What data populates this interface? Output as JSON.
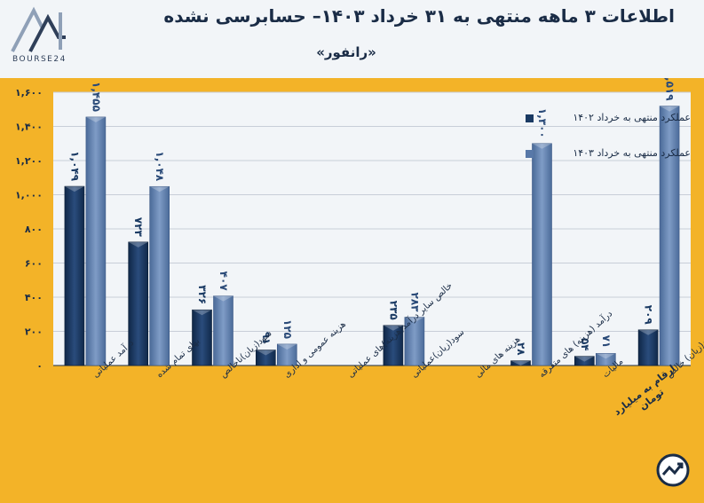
{
  "header": {
    "title": "اطلاعات ۳ ماهه منتهی به ۳۱ خرداد ۱۴۰۳– حسابرسی نشده",
    "subtitle": "«رانفور»",
    "logo_text": "BOURSE24"
  },
  "unit_note": "ارقام به میلیارد تومان",
  "colors": {
    "background": "#f3b328",
    "plot_area": "#f2f5f8",
    "series_prev": "#1a3a63",
    "series_curr": "#5878a8",
    "text": "#1a2c46"
  },
  "chart_data": {
    "type": "bar",
    "ylim": [
      0,
      1600
    ],
    "yticks": [
      "۰",
      "۲۰۰",
      "۴۰۰",
      "۶۰۰",
      "۸۰۰",
      "۱,۰۰۰",
      "۱,۲۰۰",
      "۱,۴۰۰",
      "۱,۶۰۰"
    ],
    "ytick_values": [
      0,
      200,
      400,
      600,
      800,
      1000,
      1200,
      1400,
      1600
    ],
    "legend_position": "top-right",
    "categories": [
      "درآمد عملیاتی",
      "بهای تمام شده",
      "سود(زیان)ناخالص",
      "هزینه عمومی و اداری",
      "خالص سایر درآمد(هزینه)های عملیاتی",
      "سود(زیان)عملیاتی",
      "هزینه های مالی",
      "درآمد (هزینه) های متفرقه",
      "مالیات",
      "سود(زیان) خالص"
    ],
    "series": [
      {
        "name": "عملکرد منتهی به خرداد ۱۴۰۲",
        "values": [
          1049,
          723,
          326,
          91,
          null,
          235,
          null,
          28,
          54,
          209
        ],
        "labels": [
          "۱,۰۴۹",
          "۷۲۳",
          "۳۲۶",
          "۹۱",
          "",
          "۲۳۵",
          "",
          "۲۸",
          "۵۴",
          "۲۰۹"
        ]
      },
      {
        "name": "عملکرد منتهی به خرداد ۱۴۰۳",
        "values": [
          1455,
          1048,
          407,
          125,
          null,
          283,
          null,
          1300,
          71,
          1519
        ],
        "labels": [
          "۱,۴۵۵",
          "۱,۰۴۸",
          "۴۰۷",
          "۱۲۵",
          "",
          "۲۸۳",
          "",
          "۱,۳۰۰",
          "۷۱",
          "۱,۵۱۹"
        ]
      }
    ]
  }
}
